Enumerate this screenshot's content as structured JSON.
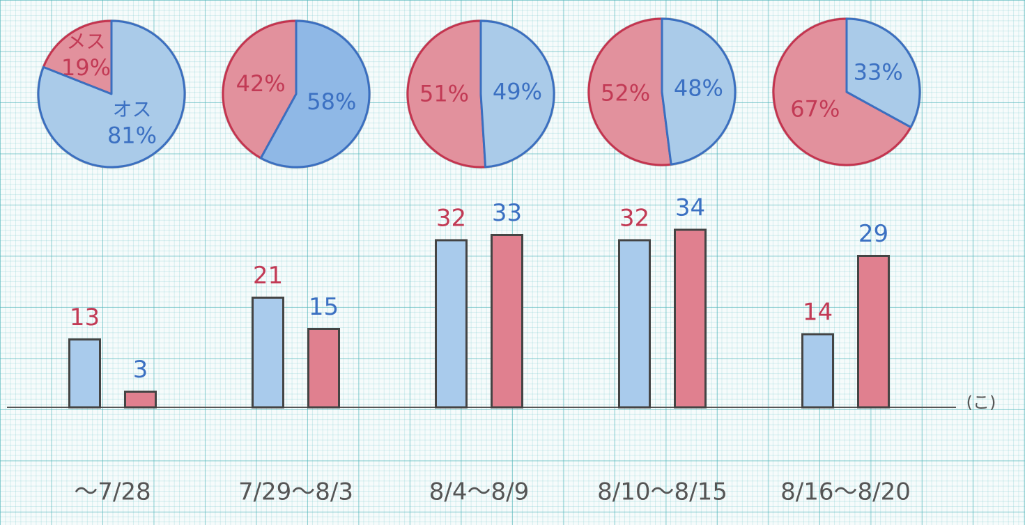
{
  "chart_data": [
    {
      "type": "pie",
      "categories": [
        "メス",
        "オス"
      ],
      "values": [
        19,
        81
      ],
      "value_labels": [
        "19%",
        "81%"
      ],
      "colors": [
        "#e2919d",
        "#aacbe9"
      ]
    },
    {
      "type": "pie",
      "values": [
        42,
        58
      ],
      "value_labels": [
        "42%",
        "58%"
      ],
      "colors": [
        "#e2919d",
        "#8fb8e6"
      ]
    },
    {
      "type": "pie",
      "values": [
        51,
        49
      ],
      "value_labels": [
        "51%",
        "49%"
      ],
      "colors": [
        "#e2919d",
        "#aacbe9"
      ]
    },
    {
      "type": "pie",
      "values": [
        52,
        48
      ],
      "value_labels": [
        "52%",
        "48%"
      ],
      "colors": [
        "#e2919d",
        "#aacbe9"
      ]
    },
    {
      "type": "pie",
      "values": [
        67,
        33
      ],
      "value_labels": [
        "67%",
        "33%"
      ],
      "colors": [
        "#e2919d",
        "#aacbe9"
      ]
    },
    {
      "type": "bar",
      "categories": [
        "～7/28",
        "7/29～8/3",
        "8/4～8/9",
        "8/10～8/15",
        "8/16～8/20"
      ],
      "y_label": "(こ)",
      "series": [
        {
          "color": "#a9cbec",
          "values": [
            13,
            21,
            32,
            32,
            14
          ]
        },
        {
          "color": "#e0808f",
          "values": [
            3,
            15,
            33,
            34,
            29
          ]
        }
      ]
    }
  ]
}
